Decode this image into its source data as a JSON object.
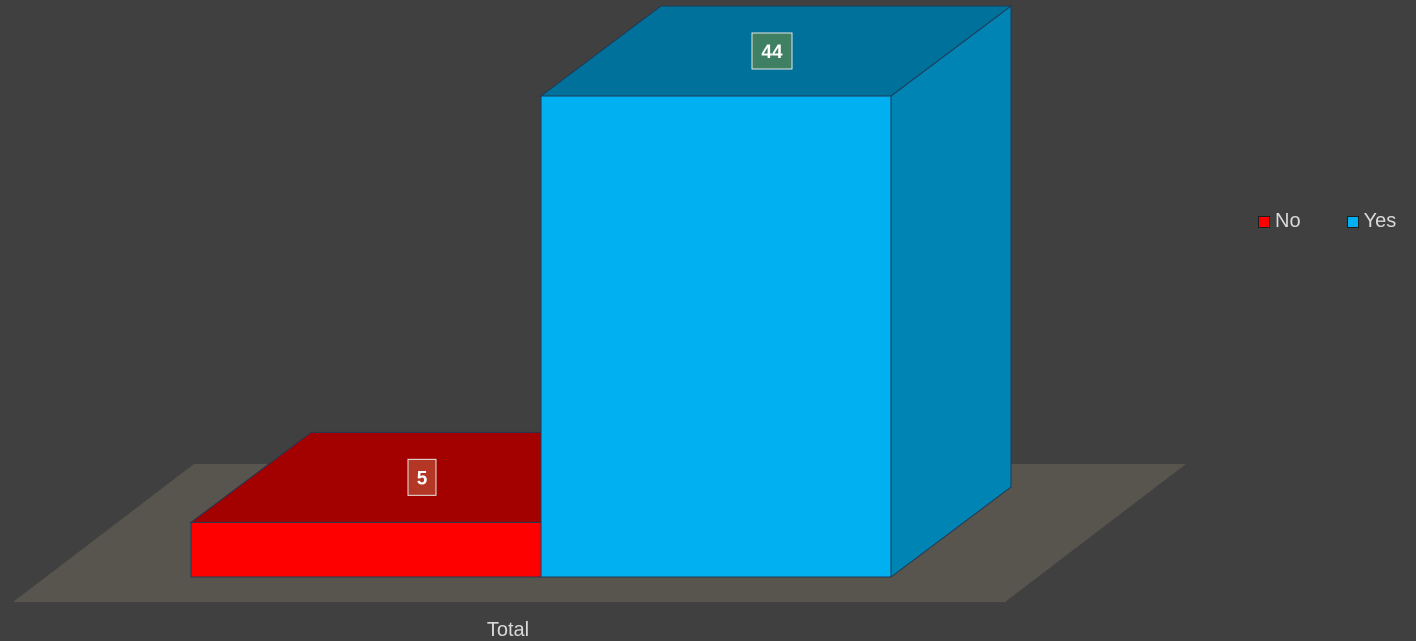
{
  "chart_data": {
    "type": "bar",
    "style": "3d-column",
    "categories": [
      "Total"
    ],
    "series": [
      {
        "name": "No",
        "values": [
          5
        ],
        "color": "#ff0000"
      },
      {
        "name": "Yes",
        "values": [
          44
        ],
        "color": "#00b0f0"
      }
    ],
    "data_labels": true,
    "legend_position": "right",
    "grid": false,
    "ylim": [
      0,
      44
    ]
  },
  "colors": {
    "background": "#404040",
    "floor": "#57554d",
    "no_label_bg": "#b43726",
    "yes_label_bg": "#3f7f62",
    "text": "#d9d9d9"
  }
}
